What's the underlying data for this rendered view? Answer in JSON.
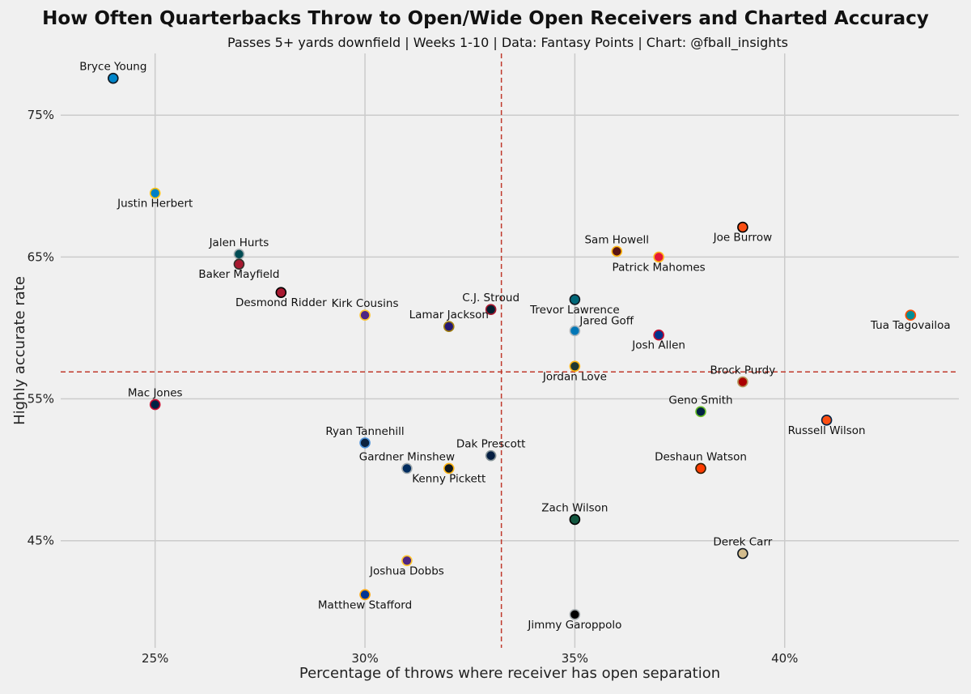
{
  "chart_data": {
    "type": "scatter",
    "title": "How Often Quarterbacks Throw to Open/Wide Open Receivers and Charted Accuracy",
    "subtitle": "Passes 5+ yards downfield | Weeks 1-10 | Data: Fantasy Points | Chart: @fball_insights",
    "xlabel": "Percentage of throws where receiver has open separation",
    "ylabel": "Highly accurate rate",
    "xlim": [
      0.2275,
      0.4415
    ],
    "ylim": [
      0.3745,
      0.7935
    ],
    "xticks": [
      0.25,
      0.3,
      0.35,
      0.4
    ],
    "xtick_labels": [
      "25%",
      "30%",
      "35%",
      "40%"
    ],
    "yticks": [
      0.45,
      0.55,
      0.65,
      0.75
    ],
    "ytick_labels": [
      "45%",
      "55%",
      "65%",
      "75%"
    ],
    "grid": true,
    "reference_lines": {
      "x": 0.3325,
      "y": 0.569,
      "color": "#c0392b",
      "style": "dashed"
    },
    "points": [
      {
        "name": "Bryce Young",
        "x": 0.24,
        "y": 0.776,
        "color": "#0085CA",
        "edge": "#101820",
        "label_pos": "above"
      },
      {
        "name": "Justin Herbert",
        "x": 0.25,
        "y": 0.695,
        "color": "#0080C6",
        "edge": "#FFC20E",
        "label_pos": "below"
      },
      {
        "name": "Jalen Hurts",
        "x": 0.27,
        "y": 0.652,
        "color": "#004C54",
        "edge": "#A5ACAF",
        "label_pos": "above"
      },
      {
        "name": "Baker Mayfield",
        "x": 0.27,
        "y": 0.645,
        "color": "#A71930",
        "edge": "#34302B",
        "label_pos": "below"
      },
      {
        "name": "Desmond Ridder",
        "x": 0.28,
        "y": 0.625,
        "color": "#A71930",
        "edge": "#000000",
        "label_pos": "below"
      },
      {
        "name": "Kirk Cousins",
        "x": 0.3,
        "y": 0.609,
        "color": "#4F2683",
        "edge": "#FFC62F",
        "label_pos": "above"
      },
      {
        "name": "Lamar Jackson",
        "x": 0.32,
        "y": 0.601,
        "color": "#241773",
        "edge": "#9E7C0C",
        "label_pos": "above"
      },
      {
        "name": "C.J. Stroud",
        "x": 0.33,
        "y": 0.613,
        "color": "#03202F",
        "edge": "#A71930",
        "label_pos": "above"
      },
      {
        "name": "Trevor Lawrence",
        "x": 0.35,
        "y": 0.62,
        "color": "#006778",
        "edge": "#101820",
        "label_pos": "below"
      },
      {
        "name": "Jared Goff",
        "x": 0.35,
        "y": 0.598,
        "color": "#0076B6",
        "edge": "#B0B7BC",
        "label_pos": "above-right"
      },
      {
        "name": "Jordan Love",
        "x": 0.35,
        "y": 0.573,
        "color": "#203731",
        "edge": "#FFB612",
        "label_pos": "below"
      },
      {
        "name": "Sam Howell",
        "x": 0.36,
        "y": 0.654,
        "color": "#5A1414",
        "edge": "#FFB612",
        "label_pos": "above"
      },
      {
        "name": "Patrick Mahomes",
        "x": 0.37,
        "y": 0.65,
        "color": "#E31837",
        "edge": "#FFB81C",
        "label_pos": "below"
      },
      {
        "name": "Joe Burrow",
        "x": 0.39,
        "y": 0.671,
        "color": "#FB4F14",
        "edge": "#000000",
        "label_pos": "below"
      },
      {
        "name": "Josh Allen",
        "x": 0.37,
        "y": 0.595,
        "color": "#00338D",
        "edge": "#C60C30",
        "label_pos": "below"
      },
      {
        "name": "Tua Tagovailoa",
        "x": 0.43,
        "y": 0.609,
        "color": "#008E97",
        "edge": "#FC4C02",
        "label_pos": "below"
      },
      {
        "name": "Brock Purdy",
        "x": 0.39,
        "y": 0.562,
        "color": "#AA0000",
        "edge": "#B3995D",
        "label_pos": "above"
      },
      {
        "name": "Geno Smith",
        "x": 0.38,
        "y": 0.541,
        "color": "#002244",
        "edge": "#69BE28",
        "label_pos": "above"
      },
      {
        "name": "Russell Wilson",
        "x": 0.41,
        "y": 0.535,
        "color": "#FB4F14",
        "edge": "#002244",
        "label_pos": "below"
      },
      {
        "name": "Mac Jones",
        "x": 0.25,
        "y": 0.546,
        "color": "#002244",
        "edge": "#C60C30",
        "label_pos": "above"
      },
      {
        "name": "Ryan Tannehill",
        "x": 0.3,
        "y": 0.519,
        "color": "#0C2340",
        "edge": "#4B92DB",
        "label_pos": "above"
      },
      {
        "name": "Gardner Minshew",
        "x": 0.31,
        "y": 0.501,
        "color": "#002C5F",
        "edge": "#A2AAAD",
        "label_pos": "above"
      },
      {
        "name": "Kenny Pickett",
        "x": 0.32,
        "y": 0.501,
        "color": "#101820",
        "edge": "#FFB612",
        "label_pos": "below"
      },
      {
        "name": "Dak Prescott",
        "x": 0.33,
        "y": 0.51,
        "color": "#041E42",
        "edge": "#869397",
        "label_pos": "above"
      },
      {
        "name": "Deshaun Watson",
        "x": 0.38,
        "y": 0.501,
        "color": "#FF3C00",
        "edge": "#311D00",
        "label_pos": "above"
      },
      {
        "name": "Zach Wilson",
        "x": 0.35,
        "y": 0.465,
        "color": "#125740",
        "edge": "#000000",
        "label_pos": "above"
      },
      {
        "name": "Derek Carr",
        "x": 0.39,
        "y": 0.441,
        "color": "#D3BC8D",
        "edge": "#101820",
        "label_pos": "above"
      },
      {
        "name": "Joshua Dobbs",
        "x": 0.31,
        "y": 0.436,
        "color": "#4F2683",
        "edge": "#FFC62F",
        "label_pos": "below"
      },
      {
        "name": "Matthew Stafford",
        "x": 0.3,
        "y": 0.412,
        "color": "#003594",
        "edge": "#FFA300",
        "label_pos": "below"
      },
      {
        "name": "Jimmy Garoppolo",
        "x": 0.35,
        "y": 0.398,
        "color": "#000000",
        "edge": "#A5ACAF",
        "label_pos": "below"
      }
    ]
  }
}
